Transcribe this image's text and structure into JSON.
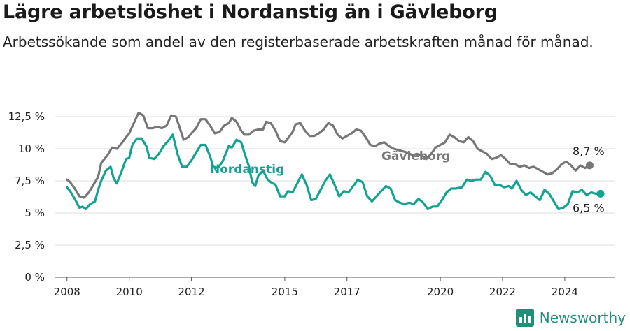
{
  "title": "Lägre arbetslöshet i Nordanstig än i Gävleborg",
  "subtitle": "Arbetssökande som andel av den registerbaserade arbetskraften månad för månad.",
  "brand": {
    "name": "Newsworthy",
    "icon": "bar-chart-logo-icon",
    "color": "#1f8f7a"
  },
  "chart_data": {
    "type": "line",
    "ylim": [
      0,
      12.5
    ],
    "yticks": [
      {
        "value": 0,
        "label": "0 %"
      },
      {
        "value": 2.5,
        "label": "2,5 %"
      },
      {
        "value": 5,
        "label": "5 %"
      },
      {
        "value": 7.5,
        "label": "7,5 %"
      },
      {
        "value": 10,
        "label": "10 %"
      },
      {
        "value": 12.5,
        "label": "12,5 %"
      }
    ],
    "xlim": [
      2007.6,
      2025.6
    ],
    "xticks": [
      {
        "value": 2008,
        "label": "2008"
      },
      {
        "value": 2010,
        "label": "2010"
      },
      {
        "value": 2012,
        "label": "2012"
      },
      {
        "value": 2015,
        "label": "2015"
      },
      {
        "value": 2017,
        "label": "2017"
      },
      {
        "value": 2020,
        "label": "2020"
      },
      {
        "value": 2022,
        "label": "2022"
      },
      {
        "value": 2024,
        "label": "2024"
      }
    ],
    "grid": true,
    "series": [
      {
        "name": "Gävleborg",
        "color": "#777777",
        "end_label": "8,7 %",
        "points": [
          [
            2008.0,
            7.6
          ],
          [
            2008.1,
            7.4
          ],
          [
            2008.25,
            6.9
          ],
          [
            2008.4,
            6.3
          ],
          [
            2008.55,
            6.2
          ],
          [
            2008.7,
            6.6
          ],
          [
            2008.85,
            7.2
          ],
          [
            2009.0,
            7.8
          ],
          [
            2009.1,
            8.9
          ],
          [
            2009.3,
            9.5
          ],
          [
            2009.45,
            10.1
          ],
          [
            2009.6,
            10.0
          ],
          [
            2009.75,
            10.4
          ],
          [
            2009.9,
            10.9
          ],
          [
            2010.0,
            11.2
          ],
          [
            2010.15,
            12.0
          ],
          [
            2010.3,
            12.8
          ],
          [
            2010.45,
            12.6
          ],
          [
            2010.6,
            11.6
          ],
          [
            2010.75,
            11.6
          ],
          [
            2010.9,
            11.7
          ],
          [
            2011.05,
            11.6
          ],
          [
            2011.2,
            11.8
          ],
          [
            2011.35,
            12.6
          ],
          [
            2011.5,
            12.5
          ],
          [
            2011.6,
            11.8
          ],
          [
            2011.75,
            10.7
          ],
          [
            2011.9,
            10.9
          ],
          [
            2012.0,
            11.2
          ],
          [
            2012.15,
            11.6
          ],
          [
            2012.3,
            12.3
          ],
          [
            2012.45,
            12.3
          ],
          [
            2012.6,
            11.8
          ],
          [
            2012.75,
            11.2
          ],
          [
            2012.9,
            11.3
          ],
          [
            2013.05,
            11.8
          ],
          [
            2013.2,
            12.0
          ],
          [
            2013.3,
            12.4
          ],
          [
            2013.45,
            12.1
          ],
          [
            2013.6,
            11.4
          ],
          [
            2013.7,
            11.1
          ],
          [
            2013.85,
            11.1
          ],
          [
            2014.0,
            11.4
          ],
          [
            2014.15,
            11.5
          ],
          [
            2014.3,
            11.5
          ],
          [
            2014.4,
            12.1
          ],
          [
            2014.55,
            12.0
          ],
          [
            2014.7,
            11.4
          ],
          [
            2014.85,
            10.6
          ],
          [
            2015.0,
            10.5
          ],
          [
            2015.1,
            10.8
          ],
          [
            2015.25,
            11.3
          ],
          [
            2015.35,
            11.9
          ],
          [
            2015.5,
            12.0
          ],
          [
            2015.65,
            11.4
          ],
          [
            2015.8,
            11.0
          ],
          [
            2015.95,
            11.0
          ],
          [
            2016.1,
            11.2
          ],
          [
            2016.25,
            11.5
          ],
          [
            2016.4,
            12.0
          ],
          [
            2016.55,
            11.8
          ],
          [
            2016.7,
            11.1
          ],
          [
            2016.85,
            10.8
          ],
          [
            2017.0,
            11.0
          ],
          [
            2017.15,
            11.2
          ],
          [
            2017.3,
            11.5
          ],
          [
            2017.45,
            11.4
          ],
          [
            2017.6,
            10.9
          ],
          [
            2017.75,
            10.3
          ],
          [
            2017.9,
            10.2
          ],
          [
            2018.05,
            10.4
          ],
          [
            2018.2,
            10.5
          ],
          [
            2018.35,
            10.2
          ],
          [
            2018.5,
            10.0
          ],
          [
            2018.65,
            9.9
          ],
          [
            2018.8,
            9.8
          ],
          [
            2018.95,
            9.7
          ],
          [
            2019.1,
            9.5
          ],
          [
            2019.25,
            9.6
          ],
          [
            2019.4,
            9.5
          ],
          [
            2019.55,
            9.2
          ],
          [
            2019.7,
            9.6
          ],
          [
            2019.85,
            10.1
          ],
          [
            2020.0,
            10.3
          ],
          [
            2020.15,
            10.5
          ],
          [
            2020.3,
            11.1
          ],
          [
            2020.45,
            10.9
          ],
          [
            2020.6,
            10.6
          ],
          [
            2020.75,
            10.5
          ],
          [
            2020.9,
            10.9
          ],
          [
            2021.05,
            10.6
          ],
          [
            2021.2,
            10.0
          ],
          [
            2021.35,
            9.8
          ],
          [
            2021.5,
            9.6
          ],
          [
            2021.65,
            9.2
          ],
          [
            2021.8,
            9.3
          ],
          [
            2021.95,
            9.5
          ],
          [
            2022.1,
            9.2
          ],
          [
            2022.25,
            8.8
          ],
          [
            2022.4,
            8.8
          ],
          [
            2022.55,
            8.6
          ],
          [
            2022.7,
            8.7
          ],
          [
            2022.85,
            8.5
          ],
          [
            2023.0,
            8.6
          ],
          [
            2023.15,
            8.4
          ],
          [
            2023.3,
            8.2
          ],
          [
            2023.45,
            8.0
          ],
          [
            2023.6,
            8.1
          ],
          [
            2023.75,
            8.4
          ],
          [
            2023.9,
            8.8
          ],
          [
            2024.05,
            9.0
          ],
          [
            2024.2,
            8.7
          ],
          [
            2024.35,
            8.3
          ],
          [
            2024.5,
            8.7
          ],
          [
            2024.65,
            8.5
          ],
          [
            2024.8,
            8.7
          ]
        ]
      },
      {
        "name": "Nordanstig",
        "color": "#13a393",
        "end_label": "6,5 %",
        "points": [
          [
            2008.0,
            7.0
          ],
          [
            2008.1,
            6.7
          ],
          [
            2008.25,
            6.1
          ],
          [
            2008.4,
            5.4
          ],
          [
            2008.5,
            5.5
          ],
          [
            2008.6,
            5.3
          ],
          [
            2008.75,
            5.7
          ],
          [
            2008.9,
            5.9
          ],
          [
            2009.0,
            6.8
          ],
          [
            2009.1,
            7.5
          ],
          [
            2009.25,
            8.3
          ],
          [
            2009.4,
            8.6
          ],
          [
            2009.5,
            7.7
          ],
          [
            2009.6,
            7.3
          ],
          [
            2009.75,
            8.2
          ],
          [
            2009.9,
            9.2
          ],
          [
            2010.0,
            9.3
          ],
          [
            2010.1,
            10.3
          ],
          [
            2010.25,
            10.8
          ],
          [
            2010.4,
            10.8
          ],
          [
            2010.55,
            10.2
          ],
          [
            2010.65,
            9.3
          ],
          [
            2010.8,
            9.2
          ],
          [
            2010.95,
            9.6
          ],
          [
            2011.1,
            10.2
          ],
          [
            2011.25,
            10.6
          ],
          [
            2011.4,
            11.1
          ],
          [
            2011.55,
            9.6
          ],
          [
            2011.7,
            8.6
          ],
          [
            2011.85,
            8.6
          ],
          [
            2012.0,
            9.1
          ],
          [
            2012.15,
            9.7
          ],
          [
            2012.3,
            10.3
          ],
          [
            2012.45,
            10.3
          ],
          [
            2012.6,
            9.4
          ],
          [
            2012.7,
            8.6
          ],
          [
            2012.85,
            8.5
          ],
          [
            2013.0,
            9.0
          ],
          [
            2013.1,
            9.6
          ],
          [
            2013.2,
            10.2
          ],
          [
            2013.3,
            10.1
          ],
          [
            2013.45,
            10.7
          ],
          [
            2013.6,
            10.5
          ],
          [
            2013.7,
            9.7
          ],
          [
            2013.85,
            8.6
          ],
          [
            2013.95,
            7.4
          ],
          [
            2014.05,
            7.1
          ],
          [
            2014.15,
            7.9
          ],
          [
            2014.3,
            8.3
          ],
          [
            2014.45,
            7.6
          ],
          [
            2014.55,
            7.4
          ],
          [
            2014.7,
            7.2
          ],
          [
            2014.85,
            6.3
          ],
          [
            2015.0,
            6.3
          ],
          [
            2015.1,
            6.7
          ],
          [
            2015.25,
            6.6
          ],
          [
            2015.4,
            7.3
          ],
          [
            2015.55,
            8.0
          ],
          [
            2015.7,
            7.2
          ],
          [
            2015.85,
            6.0
          ],
          [
            2016.0,
            6.1
          ],
          [
            2016.15,
            6.8
          ],
          [
            2016.3,
            7.5
          ],
          [
            2016.45,
            8.0
          ],
          [
            2016.6,
            7.2
          ],
          [
            2016.75,
            6.3
          ],
          [
            2016.9,
            6.7
          ],
          [
            2017.05,
            6.6
          ],
          [
            2017.2,
            7.1
          ],
          [
            2017.35,
            7.6
          ],
          [
            2017.5,
            7.4
          ],
          [
            2017.65,
            6.3
          ],
          [
            2017.8,
            5.9
          ],
          [
            2017.95,
            6.3
          ],
          [
            2018.1,
            6.7
          ],
          [
            2018.25,
            7.1
          ],
          [
            2018.4,
            6.9
          ],
          [
            2018.55,
            6.0
          ],
          [
            2018.7,
            5.8
          ],
          [
            2018.85,
            5.7
          ],
          [
            2019.0,
            5.8
          ],
          [
            2019.15,
            5.7
          ],
          [
            2019.3,
            6.1
          ],
          [
            2019.45,
            5.8
          ],
          [
            2019.6,
            5.3
          ],
          [
            2019.75,
            5.5
          ],
          [
            2019.9,
            5.5
          ],
          [
            2020.05,
            6.0
          ],
          [
            2020.2,
            6.6
          ],
          [
            2020.35,
            6.9
          ],
          [
            2020.5,
            6.9
          ],
          [
            2020.7,
            7.0
          ],
          [
            2020.85,
            7.6
          ],
          [
            2021.0,
            7.5
          ],
          [
            2021.15,
            7.6
          ],
          [
            2021.3,
            7.6
          ],
          [
            2021.45,
            8.2
          ],
          [
            2021.6,
            7.9
          ],
          [
            2021.75,
            7.2
          ],
          [
            2021.9,
            7.2
          ],
          [
            2022.05,
            7.0
          ],
          [
            2022.2,
            7.1
          ],
          [
            2022.3,
            6.9
          ],
          [
            2022.45,
            7.5
          ],
          [
            2022.6,
            6.8
          ],
          [
            2022.75,
            6.4
          ],
          [
            2022.9,
            6.6
          ],
          [
            2023.05,
            6.3
          ],
          [
            2023.2,
            6.0
          ],
          [
            2023.35,
            6.8
          ],
          [
            2023.5,
            6.5
          ],
          [
            2023.65,
            5.9
          ],
          [
            2023.8,
            5.3
          ],
          [
            2023.95,
            5.4
          ],
          [
            2024.1,
            5.7
          ],
          [
            2024.25,
            6.7
          ],
          [
            2024.4,
            6.6
          ],
          [
            2024.55,
            6.8
          ],
          [
            2024.7,
            6.4
          ],
          [
            2024.85,
            6.6
          ],
          [
            2025.0,
            6.5
          ],
          [
            2025.15,
            6.5
          ]
        ]
      }
    ]
  }
}
